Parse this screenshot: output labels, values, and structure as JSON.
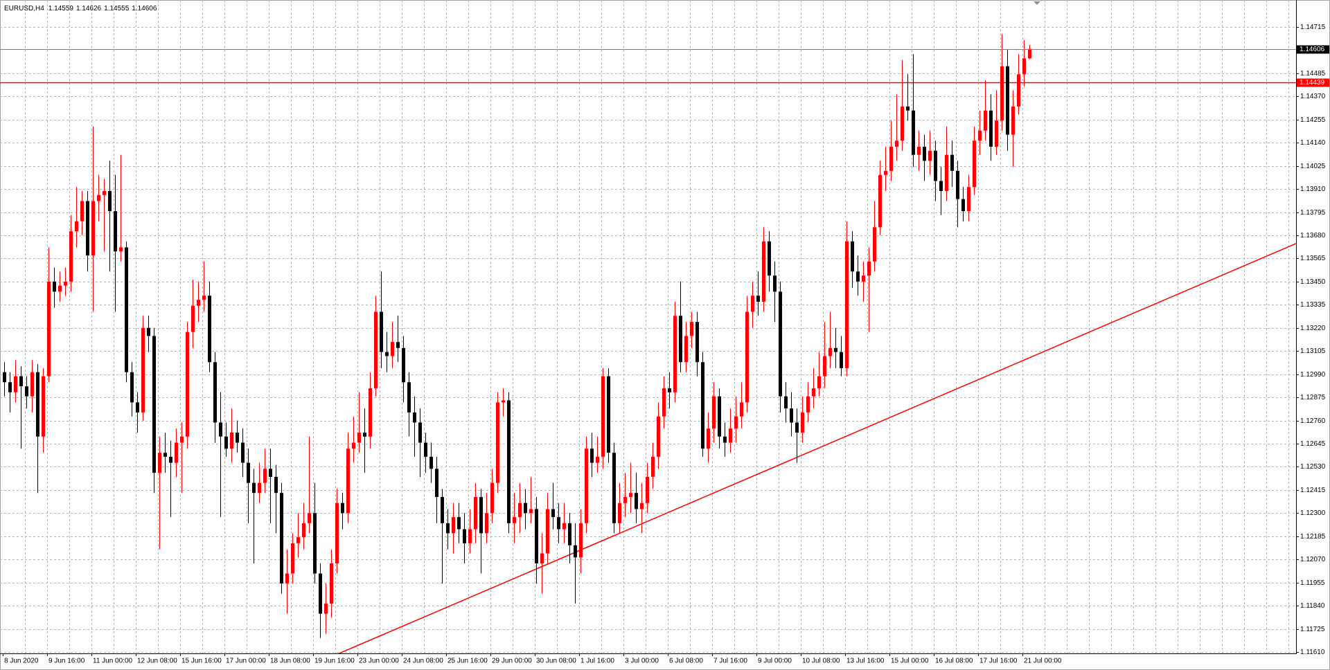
{
  "chart_data": {
    "type": "candlestick",
    "title": "EURUSD,H4",
    "up_color": "#ff0000",
    "down_color": "#000000",
    "grid": true,
    "ylim": [
      1.11603,
      1.14849
    ],
    "yticks": [
      {
        "value": 1.1161,
        "label": "1.11610"
      },
      1.11725,
      {
        "value": 1.1184,
        "label": "1.11840"
      },
      1.11955,
      {
        "value": 1.1207,
        "label": "1.12070"
      },
      1.12185,
      {
        "value": 1.123,
        "label": "1.12300"
      },
      1.12415,
      {
        "value": 1.1253,
        "label": "1.12530"
      },
      1.12645,
      {
        "value": 1.1276,
        "label": "1.12760"
      },
      1.12875,
      {
        "value": 1.1299,
        "label": "1.12990"
      },
      1.13105,
      {
        "value": 1.1322,
        "label": "1.13220"
      },
      1.13335,
      {
        "value": 1.1345,
        "label": "1.13450"
      },
      1.13565,
      {
        "value": 1.1368,
        "label": "1.13680"
      },
      1.13795,
      {
        "value": 1.1391,
        "label": "1.13910"
      },
      1.14025,
      {
        "value": 1.1414,
        "label": "1.14140"
      },
      1.14255,
      {
        "value": 1.1437,
        "label": "1.14370"
      },
      1.14485,
      1.14715
    ],
    "x_labels": [
      "8 Jun 2020",
      "9 Jun 16:00",
      "11 Jun 00:00",
      "12 Jun 08:00",
      "15 Jun 16:00",
      "17 Jun 00:00",
      "18 Jun 08:00",
      "19 Jun 16:00",
      "23 Jun 00:00",
      "24 Jun 08:00",
      "25 Jun 16:00",
      "29 Jun 00:00",
      "30 Jun 08:00",
      "1 Jul 16:00",
      "3 Jul 00:00",
      "6 Jul 08:00",
      "7 Jul 16:00",
      "9 Jul 00:00",
      "10 Jul 08:00",
      "13 Jul 16:00",
      "15 Jul 00:00",
      "16 Jul 08:00",
      "17 Jul 16:00",
      "21 Jul 00:00"
    ],
    "hlines": [
      {
        "value": 1.14439,
        "color": "#ff0000"
      }
    ],
    "trendline": {
      "color": "#ff0000",
      "start": [
        60.2,
        1.116
      ],
      "end": [
        233.2,
        1.1364
      ]
    },
    "candles": [
      [
        1.13,
        1.1305,
        1.1288,
        1.1295
      ],
      [
        1.1295,
        1.13,
        1.128,
        1.129
      ],
      [
        1.129,
        1.1306,
        1.1285,
        1.1298
      ],
      [
        1.1298,
        1.1303,
        1.1262,
        1.1293
      ],
      [
        1.1293,
        1.1298,
        1.1282,
        1.1288
      ],
      [
        1.1288,
        1.1306,
        1.128,
        1.13
      ],
      [
        1.13,
        1.1304,
        1.124,
        1.1268
      ],
      [
        1.1268,
        1.1302,
        1.126,
        1.1298
      ],
      [
        1.1298,
        1.1362,
        1.1295,
        1.1345
      ],
      [
        1.1345,
        1.1352,
        1.1332,
        1.134
      ],
      [
        1.134,
        1.135,
        1.1335,
        1.1343
      ],
      [
        1.1343,
        1.1352,
        1.1338,
        1.1345
      ],
      [
        1.1345,
        1.1378,
        1.134,
        1.137
      ],
      [
        1.137,
        1.1392,
        1.1362,
        1.1375
      ],
      [
        1.1375,
        1.139,
        1.1368,
        1.1385
      ],
      [
        1.1385,
        1.139,
        1.135,
        1.1358
      ],
      [
        1.1358,
        1.1422,
        1.133,
        1.1385
      ],
      [
        1.1385,
        1.1398,
        1.1375,
        1.1388
      ],
      [
        1.1388,
        1.1396,
        1.136,
        1.139
      ],
      [
        1.139,
        1.1405,
        1.135,
        1.138
      ],
      [
        1.138,
        1.1398,
        1.133,
        1.136
      ],
      [
        1.136,
        1.1408,
        1.1355,
        1.1362
      ],
      [
        1.1362,
        1.1365,
        1.1295,
        1.13
      ],
      [
        1.13,
        1.1305,
        1.1278,
        1.1285
      ],
      [
        1.1285,
        1.129,
        1.127,
        1.128
      ],
      [
        1.128,
        1.1328,
        1.1276,
        1.1322
      ],
      [
        1.1322,
        1.1328,
        1.131,
        1.1318
      ],
      [
        1.1318,
        1.1322,
        1.124,
        1.125
      ],
      [
        1.125,
        1.1268,
        1.1212,
        1.126
      ],
      [
        1.126,
        1.127,
        1.125,
        1.1258
      ],
      [
        1.1258,
        1.1266,
        1.1228,
        1.1255
      ],
      [
        1.1255,
        1.1272,
        1.1248,
        1.1265
      ],
      [
        1.1265,
        1.1275,
        1.124,
        1.1268
      ],
      [
        1.1268,
        1.1325,
        1.1262,
        1.132
      ],
      [
        1.132,
        1.1346,
        1.1312,
        1.1333
      ],
      [
        1.1333,
        1.1345,
        1.1325,
        1.1336
      ],
      [
        1.1336,
        1.1355,
        1.133,
        1.1338
      ],
      [
        1.1338,
        1.1345,
        1.13,
        1.1305
      ],
      [
        1.1305,
        1.131,
        1.1265,
        1.1275
      ],
      [
        1.1275,
        1.129,
        1.1228,
        1.1268
      ],
      [
        1.1268,
        1.1275,
        1.1258,
        1.1262
      ],
      [
        1.1262,
        1.1282,
        1.1255,
        1.127
      ],
      [
        1.127,
        1.1276,
        1.126,
        1.1265
      ],
      [
        1.1265,
        1.1272,
        1.1248,
        1.1255
      ],
      [
        1.1255,
        1.1262,
        1.1225,
        1.1245
      ],
      [
        1.1245,
        1.1252,
        1.1205,
        1.124
      ],
      [
        1.124,
        1.1255,
        1.1235,
        1.1245
      ],
      [
        1.1245,
        1.1262,
        1.124,
        1.1252
      ],
      [
        1.1252,
        1.1262,
        1.1225,
        1.1248
      ],
      [
        1.1248,
        1.1254,
        1.122,
        1.124
      ],
      [
        1.124,
        1.1245,
        1.119,
        1.1195
      ],
      [
        1.1195,
        1.1212,
        1.118,
        1.12
      ],
      [
        1.12,
        1.122,
        1.1195,
        1.1215
      ],
      [
        1.1215,
        1.123,
        1.1208,
        1.1218
      ],
      [
        1.1218,
        1.1235,
        1.1212,
        1.1225
      ],
      [
        1.1225,
        1.1268,
        1.122,
        1.123
      ],
      [
        1.123,
        1.1245,
        1.1195,
        1.12
      ],
      [
        1.12,
        1.1205,
        1.1168,
        1.118
      ],
      [
        1.118,
        1.1195,
        1.117,
        1.1185
      ],
      [
        1.1185,
        1.1212,
        1.1178,
        1.1205
      ],
      [
        1.1205,
        1.1242,
        1.12,
        1.1235
      ],
      [
        1.1235,
        1.124,
        1.1222,
        1.123
      ],
      [
        1.123,
        1.127,
        1.1225,
        1.1262
      ],
      [
        1.1262,
        1.1278,
        1.1255,
        1.1265
      ],
      [
        1.1265,
        1.129,
        1.126,
        1.127
      ],
      [
        1.127,
        1.1282,
        1.125,
        1.1268
      ],
      [
        1.1268,
        1.13,
        1.1262,
        1.1292
      ],
      [
        1.1292,
        1.1338,
        1.1288,
        1.133
      ],
      [
        1.133,
        1.135,
        1.1302,
        1.131
      ],
      [
        1.131,
        1.132,
        1.13,
        1.1308
      ],
      [
        1.1308,
        1.1325,
        1.1302,
        1.1315
      ],
      [
        1.1315,
        1.1328,
        1.1305,
        1.1312
      ],
      [
        1.1312,
        1.1318,
        1.1285,
        1.1295
      ],
      [
        1.1295,
        1.13,
        1.1268,
        1.128
      ],
      [
        1.128,
        1.1288,
        1.1258,
        1.1275
      ],
      [
        1.1275,
        1.1282,
        1.1248,
        1.1265
      ],
      [
        1.1265,
        1.127,
        1.125,
        1.1258
      ],
      [
        1.1258,
        1.1265,
        1.1245,
        1.1252
      ],
      [
        1.1252,
        1.1258,
        1.1225,
        1.1238
      ],
      [
        1.1238,
        1.1242,
        1.1195,
        1.1225
      ],
      [
        1.1225,
        1.1232,
        1.1212,
        1.122
      ],
      [
        1.122,
        1.1235,
        1.121,
        1.1228
      ],
      [
        1.1228,
        1.1235,
        1.1215,
        1.1222
      ],
      [
        1.1222,
        1.123,
        1.1205,
        1.1215
      ],
      [
        1.1215,
        1.1232,
        1.121,
        1.1222
      ],
      [
        1.1222,
        1.1245,
        1.1215,
        1.1238
      ],
      [
        1.1238,
        1.1242,
        1.12,
        1.122
      ],
      [
        1.122,
        1.124,
        1.1215,
        1.123
      ],
      [
        1.123,
        1.1252,
        1.1225,
        1.1245
      ],
      [
        1.1245,
        1.129,
        1.124,
        1.1285
      ],
      [
        1.1285,
        1.1292,
        1.1278,
        1.1286
      ],
      [
        1.1286,
        1.129,
        1.122,
        1.1225
      ],
      [
        1.1225,
        1.124,
        1.1215,
        1.1228
      ],
      [
        1.1228,
        1.1245,
        1.122,
        1.1235
      ],
      [
        1.1235,
        1.1242,
        1.1222,
        1.123
      ],
      [
        1.123,
        1.1248,
        1.1225,
        1.1232
      ],
      [
        1.1232,
        1.1238,
        1.1195,
        1.1205
      ],
      [
        1.1205,
        1.122,
        1.119,
        1.121
      ],
      [
        1.121,
        1.124,
        1.1205,
        1.1232
      ],
      [
        1.1232,
        1.1245,
        1.1222,
        1.1228
      ],
      [
        1.1228,
        1.1235,
        1.1215,
        1.1222
      ],
      [
        1.1222,
        1.1235,
        1.1215,
        1.1225
      ],
      [
        1.1225,
        1.123,
        1.1205,
        1.1214
      ],
      [
        1.1214,
        1.1225,
        1.1185,
        1.1208
      ],
      [
        1.1208,
        1.1232,
        1.12,
        1.1225
      ],
      [
        1.1225,
        1.1268,
        1.122,
        1.1262
      ],
      [
        1.1262,
        1.127,
        1.1248,
        1.1255
      ],
      [
        1.1255,
        1.1268,
        1.125,
        1.1258
      ],
      [
        1.1258,
        1.1302,
        1.1252,
        1.1298
      ],
      [
        1.1298,
        1.1302,
        1.1255,
        1.126
      ],
      [
        1.126,
        1.1265,
        1.122,
        1.1225
      ],
      [
        1.1225,
        1.1245,
        1.122,
        1.1235
      ],
      [
        1.1235,
        1.125,
        1.1228,
        1.1238
      ],
      [
        1.1238,
        1.1255,
        1.123,
        1.124
      ],
      [
        1.124,
        1.125,
        1.1225,
        1.1232
      ],
      [
        1.1232,
        1.1245,
        1.122,
        1.1235
      ],
      [
        1.1235,
        1.1255,
        1.123,
        1.1248
      ],
      [
        1.1248,
        1.1265,
        1.1242,
        1.1258
      ],
      [
        1.1258,
        1.1285,
        1.1252,
        1.1278
      ],
      [
        1.1278,
        1.1298,
        1.1272,
        1.1292
      ],
      [
        1.1292,
        1.13,
        1.1282,
        1.129
      ],
      [
        1.129,
        1.1335,
        1.1285,
        1.1328
      ],
      [
        1.1328,
        1.1345,
        1.13,
        1.1305
      ],
      [
        1.1305,
        1.1325,
        1.13,
        1.1318
      ],
      [
        1.1318,
        1.133,
        1.1312,
        1.1325
      ],
      [
        1.1325,
        1.133,
        1.1298,
        1.1305
      ],
      [
        1.1305,
        1.131,
        1.1258,
        1.1262
      ],
      [
        1.1262,
        1.128,
        1.1255,
        1.1272
      ],
      [
        1.1272,
        1.1295,
        1.1265,
        1.1288
      ],
      [
        1.1288,
        1.1292,
        1.1262,
        1.1268
      ],
      [
        1.1268,
        1.1275,
        1.1258,
        1.1265
      ],
      [
        1.1265,
        1.1282,
        1.126,
        1.1272
      ],
      [
        1.1272,
        1.1288,
        1.1265,
        1.1278
      ],
      [
        1.1278,
        1.1295,
        1.1272,
        1.1285
      ],
      [
        1.1285,
        1.1338,
        1.128,
        1.133
      ],
      [
        1.133,
        1.1345,
        1.1322,
        1.1338
      ],
      [
        1.1338,
        1.135,
        1.1328,
        1.1335
      ],
      [
        1.1335,
        1.1372,
        1.133,
        1.1365
      ],
      [
        1.1365,
        1.137,
        1.134,
        1.1348
      ],
      [
        1.1348,
        1.1355,
        1.1325,
        1.134
      ],
      [
        1.134,
        1.1345,
        1.128,
        1.1288
      ],
      [
        1.1288,
        1.1295,
        1.1275,
        1.1282
      ],
      [
        1.1282,
        1.129,
        1.1268,
        1.1275
      ],
      [
        1.1275,
        1.1282,
        1.1255,
        1.127
      ],
      [
        1.127,
        1.1288,
        1.1265,
        1.128
      ],
      [
        1.128,
        1.1295,
        1.1275,
        1.1288
      ],
      [
        1.1288,
        1.1302,
        1.1282,
        1.1292
      ],
      [
        1.1292,
        1.131,
        1.1288,
        1.1298
      ],
      [
        1.1298,
        1.1325,
        1.1292,
        1.1308
      ],
      [
        1.1308,
        1.133,
        1.1302,
        1.1312
      ],
      [
        1.1312,
        1.1322,
        1.1302,
        1.131
      ],
      [
        1.131,
        1.1318,
        1.1298,
        1.1302
      ],
      [
        1.1302,
        1.1375,
        1.1298,
        1.1365
      ],
      [
        1.1365,
        1.137,
        1.1342,
        1.135
      ],
      [
        1.135,
        1.1358,
        1.1338,
        1.1345
      ],
      [
        1.1345,
        1.1355,
        1.1335,
        1.1348
      ],
      [
        1.1348,
        1.1362,
        1.132,
        1.1355
      ],
      [
        1.1355,
        1.1385,
        1.135,
        1.1372
      ],
      [
        1.1372,
        1.1405,
        1.1368,
        1.1398
      ],
      [
        1.1398,
        1.1412,
        1.139,
        1.14
      ],
      [
        1.14,
        1.1425,
        1.1395,
        1.1412
      ],
      [
        1.1412,
        1.1438,
        1.1405,
        1.1415
      ],
      [
        1.1415,
        1.1455,
        1.141,
        1.1432
      ],
      [
        1.1432,
        1.1448,
        1.1425,
        1.143
      ],
      [
        1.143,
        1.1458,
        1.1402,
        1.1408
      ],
      [
        1.1408,
        1.142,
        1.14,
        1.1412
      ],
      [
        1.1412,
        1.1418,
        1.1395,
        1.1405
      ],
      [
        1.1405,
        1.142,
        1.1398,
        1.141
      ],
      [
        1.141,
        1.1415,
        1.1385,
        1.1395
      ],
      [
        1.1395,
        1.1402,
        1.1378,
        1.139
      ],
      [
        1.139,
        1.1422,
        1.1385,
        1.1408
      ],
      [
        1.1408,
        1.1415,
        1.1392,
        1.14
      ],
      [
        1.14,
        1.1405,
        1.1372,
        1.1386
      ],
      [
        1.1386,
        1.1392,
        1.1375,
        1.138
      ],
      [
        1.138,
        1.1398,
        1.1375,
        1.1392
      ],
      [
        1.1392,
        1.1422,
        1.1388,
        1.1415
      ],
      [
        1.1415,
        1.143,
        1.1408,
        1.142
      ],
      [
        1.142,
        1.1445,
        1.1415,
        1.143
      ],
      [
        1.143,
        1.1438,
        1.1405,
        1.1412
      ],
      [
        1.1412,
        1.144,
        1.1408,
        1.1425
      ],
      [
        1.1425,
        1.1468,
        1.142,
        1.1452
      ],
      [
        1.1452,
        1.146,
        1.141,
        1.1418
      ],
      [
        1.1418,
        1.144,
        1.1402,
        1.1432
      ],
      [
        1.1432,
        1.1458,
        1.1428,
        1.1448
      ],
      [
        1.1448,
        1.1465,
        1.1442,
        1.14559
      ],
      [
        1.14559,
        1.14626,
        1.14555,
        1.14606
      ]
    ]
  }
}
